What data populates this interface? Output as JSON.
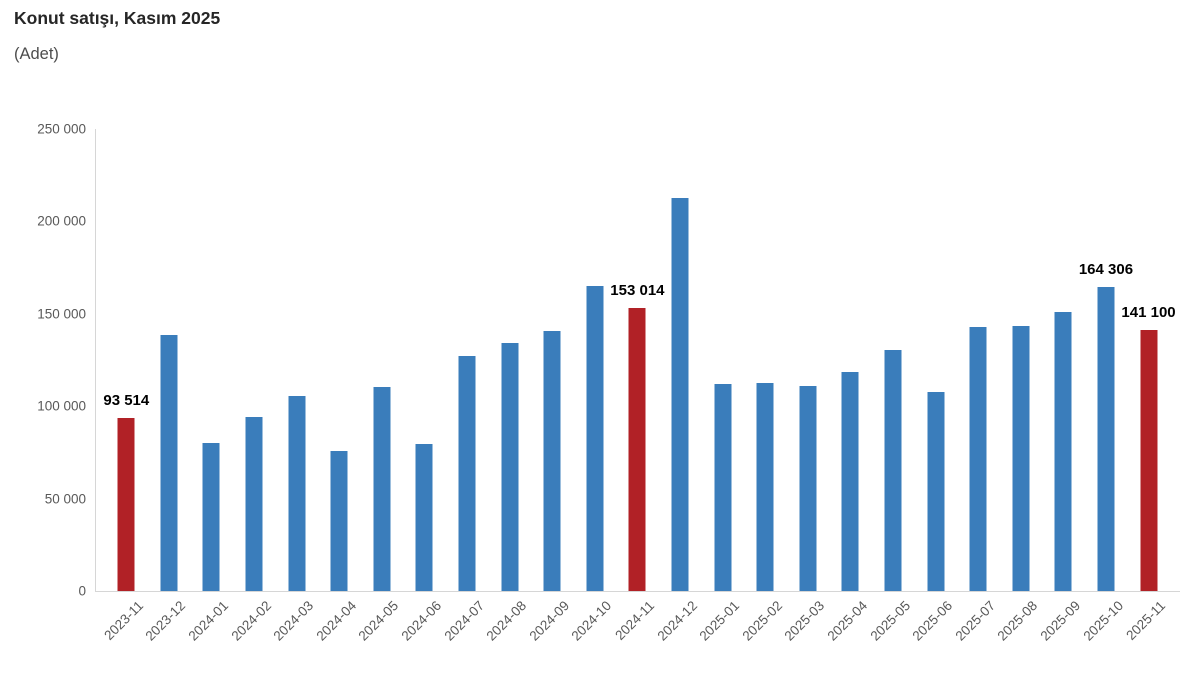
{
  "title": "Konut satışı, Kasım 2025",
  "subtitle": "(Adet)",
  "colors": {
    "bar_blue": "#3A7DBB",
    "bar_red": "#B12126",
    "axis_line": "#D6D6D6",
    "tick_text": "#595959",
    "title_text": "#262626",
    "value_label_text": "#000000"
  },
  "chart_data": {
    "type": "bar",
    "title": "Konut satışı, Kasım 2025",
    "subtitle": "(Adet)",
    "xlabel": "",
    "ylabel": "",
    "ylim": [
      0,
      250000
    ],
    "ytick_labels": [
      "0",
      "50 000",
      "100 000",
      "150 000",
      "200 000",
      "250 000"
    ],
    "grid": false,
    "legend": false,
    "categories": [
      "2023-11",
      "2023-12",
      "2024-01",
      "2024-02",
      "2024-03",
      "2024-04",
      "2024-05",
      "2024-06",
      "2024-07",
      "2024-08",
      "2024-09",
      "2024-10",
      "2024-11",
      "2024-12",
      "2025-01",
      "2025-02",
      "2025-03",
      "2025-04",
      "2025-05",
      "2025-06",
      "2025-07",
      "2025-08",
      "2025-09",
      "2025-10",
      "2025-11"
    ],
    "values": [
      93514,
      138577,
      80308,
      93902,
      105394,
      75569,
      110588,
      79313,
      127088,
      134155,
      140919,
      165138,
      153014,
      212637,
      112173,
      112818,
      110795,
      118359,
      130423,
      107723,
      142858,
      143319,
      150738,
      164306,
      141100
    ],
    "bar_color": "#3A7DBB",
    "highlight_color": "#B12126",
    "highlighted_categories": [
      "2023-11",
      "2024-11",
      "2025-11"
    ],
    "data_labels": [
      {
        "category": "2023-11",
        "text": "93 514"
      },
      {
        "category": "2024-11",
        "text": "153 014"
      },
      {
        "category": "2025-10",
        "text": "164 306"
      },
      {
        "category": "2025-11",
        "text": "141 100"
      }
    ]
  }
}
